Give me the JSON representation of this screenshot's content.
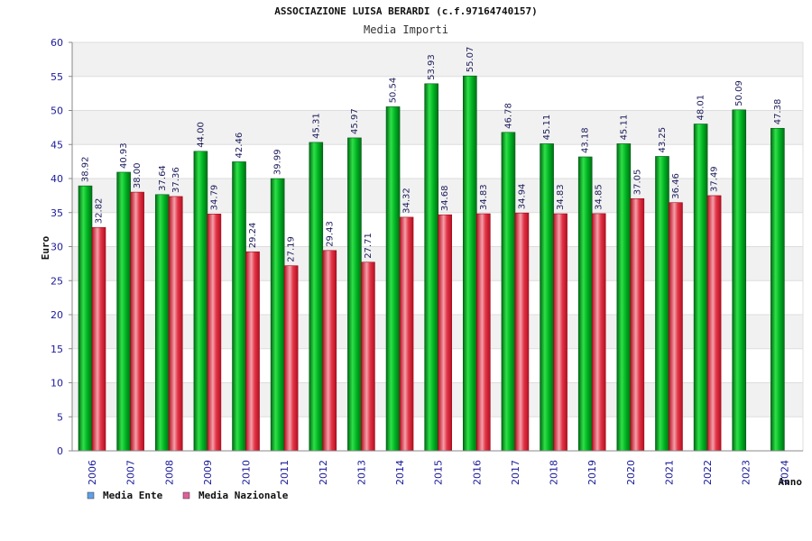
{
  "chart_data": {
    "type": "bar",
    "title": "ASSOCIAZIONE LUISA BERARDI (c.f.97164740157)",
    "subtitle": "Media Importi",
    "xlabel": "Anno",
    "ylabel": "Euro",
    "ylim": [
      0,
      60
    ],
    "yticks": [
      0,
      5,
      10,
      15,
      20,
      25,
      30,
      35,
      40,
      45,
      50,
      55,
      60
    ],
    "grid": true,
    "legend_position": "bottom-left",
    "categories": [
      "2006",
      "2007",
      "2008",
      "2009",
      "2010",
      "2011",
      "2012",
      "2013",
      "2014",
      "2015",
      "2016",
      "2017",
      "2018",
      "2019",
      "2020",
      "2021",
      "2022",
      "2023",
      "2024"
    ],
    "series": [
      {
        "name": "Media Ente",
        "color": "#00a51d",
        "legend_color": "#5f9fe8",
        "values": [
          38.92,
          40.93,
          37.64,
          44.0,
          42.46,
          39.99,
          45.31,
          45.97,
          50.54,
          53.93,
          55.07,
          46.78,
          45.11,
          43.18,
          45.11,
          43.25,
          48.01,
          50.09,
          47.38
        ],
        "labels": [
          "38.92",
          "40.93",
          "37.64",
          "44.00",
          "42.46",
          "39.99",
          "45.31",
          "45.97",
          "50.54",
          "53.93",
          "55.07",
          "46.78",
          "45.11",
          "43.18",
          "45.11",
          "43.25",
          "48.01",
          "50.09",
          "47.38"
        ]
      },
      {
        "name": "Media Nazionale",
        "color": "#e0253a",
        "legend_color": "#e0609a",
        "values": [
          32.82,
          38.0,
          37.36,
          34.79,
          29.24,
          27.19,
          29.43,
          27.71,
          34.32,
          34.68,
          34.83,
          34.94,
          34.83,
          34.85,
          37.05,
          36.46,
          37.49,
          null,
          null
        ],
        "labels": [
          "32.82",
          "38.00",
          "37.36",
          "34.79",
          "29.24",
          "27.19",
          "29.43",
          "27.71",
          "34.32",
          "34.68",
          "34.83",
          "34.94",
          "34.83",
          "34.85",
          "37.05",
          "36.46",
          "37.49",
          null,
          null
        ]
      }
    ]
  }
}
